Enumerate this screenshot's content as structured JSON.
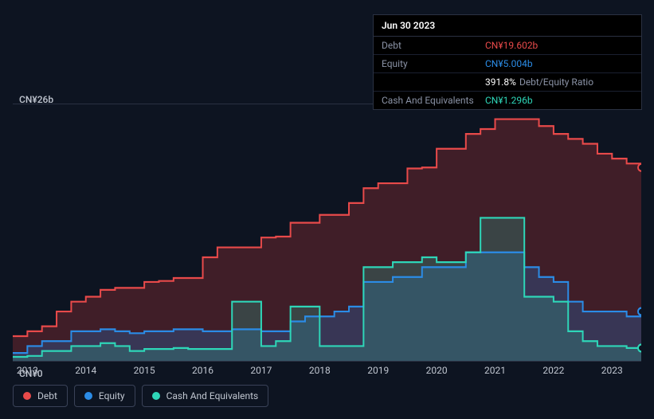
{
  "tooltip": {
    "date": "Jun 30 2023",
    "rows": [
      {
        "label": "Debt",
        "value": "CN¥19.602b",
        "cls": "debt"
      },
      {
        "label": "Equity",
        "value": "CN¥5.004b",
        "cls": "equity"
      },
      {
        "label": "",
        "value": "391.8%",
        "suffix": "Debt/Equity Ratio",
        "cls": ""
      },
      {
        "label": "Cash And Equivalents",
        "value": "CN¥1.296b",
        "cls": "cash"
      }
    ]
  },
  "chart": {
    "type": "area",
    "background_color": "#0d1421",
    "grid_color": "#2a3142",
    "y_axis": {
      "top_label": "CN¥26b",
      "bottom_label": "CN¥0",
      "ylim": [
        0,
        26
      ]
    },
    "x_axis": {
      "labels": [
        "2013",
        "2014",
        "2015",
        "2016",
        "2017",
        "2018",
        "2019",
        "2020",
        "2021",
        "2022",
        "2023"
      ],
      "xlim": [
        2012.75,
        2023.5
      ]
    },
    "series": [
      {
        "name": "Debt",
        "color": "#e84a4a",
        "fill": "rgba(160,50,55,0.35)",
        "line_width": 2,
        "points": [
          [
            2012.75,
            2.5
          ],
          [
            2013.0,
            3.0
          ],
          [
            2013.25,
            3.5
          ],
          [
            2013.5,
            5.0
          ],
          [
            2013.75,
            6.0
          ],
          [
            2014.0,
            6.5
          ],
          [
            2014.25,
            7.2
          ],
          [
            2014.5,
            7.4
          ],
          [
            2014.75,
            7.4
          ],
          [
            2015.0,
            8.0
          ],
          [
            2015.25,
            8.1
          ],
          [
            2015.5,
            8.4
          ],
          [
            2015.75,
            8.4
          ],
          [
            2016.0,
            10.5
          ],
          [
            2016.25,
            11.5
          ],
          [
            2016.5,
            11.5
          ],
          [
            2016.75,
            11.5
          ],
          [
            2017.0,
            12.5
          ],
          [
            2017.25,
            12.6
          ],
          [
            2017.5,
            14.0
          ],
          [
            2017.75,
            14.0
          ],
          [
            2018.0,
            14.8
          ],
          [
            2018.25,
            14.8
          ],
          [
            2018.5,
            16.0
          ],
          [
            2018.75,
            17.5
          ],
          [
            2019.0,
            18.0
          ],
          [
            2019.25,
            18.0
          ],
          [
            2019.5,
            19.5
          ],
          [
            2019.75,
            19.6
          ],
          [
            2020.0,
            21.5
          ],
          [
            2020.25,
            21.5
          ],
          [
            2020.5,
            23.0
          ],
          [
            2020.75,
            23.5
          ],
          [
            2021.0,
            24.5
          ],
          [
            2021.25,
            24.5
          ],
          [
            2021.5,
            24.5
          ],
          [
            2021.75,
            23.8
          ],
          [
            2022.0,
            23.0
          ],
          [
            2022.25,
            22.5
          ],
          [
            2022.5,
            22.0
          ],
          [
            2022.75,
            21.0
          ],
          [
            2023.0,
            20.5
          ],
          [
            2023.25,
            20.0
          ],
          [
            2023.5,
            19.6
          ]
        ]
      },
      {
        "name": "Equity",
        "color": "#2b8ce6",
        "fill": "rgba(43,100,170,0.35)",
        "line_width": 2,
        "points": [
          [
            2012.75,
            0.8
          ],
          [
            2013.0,
            1.5
          ],
          [
            2013.25,
            2.0
          ],
          [
            2013.5,
            2.0
          ],
          [
            2013.75,
            3.0
          ],
          [
            2014.0,
            3.0
          ],
          [
            2014.25,
            3.2
          ],
          [
            2014.5,
            3.0
          ],
          [
            2014.75,
            2.8
          ],
          [
            2015.0,
            3.0
          ],
          [
            2015.25,
            3.0
          ],
          [
            2015.5,
            3.2
          ],
          [
            2015.75,
            3.2
          ],
          [
            2016.0,
            3.0
          ],
          [
            2016.25,
            3.0
          ],
          [
            2016.5,
            3.2
          ],
          [
            2016.75,
            3.2
          ],
          [
            2017.0,
            3.0
          ],
          [
            2017.25,
            3.0
          ],
          [
            2017.5,
            4.0
          ],
          [
            2017.75,
            4.5
          ],
          [
            2018.0,
            4.5
          ],
          [
            2018.25,
            5.0
          ],
          [
            2018.5,
            5.5
          ],
          [
            2018.75,
            8.0
          ],
          [
            2019.0,
            8.0
          ],
          [
            2019.25,
            8.5
          ],
          [
            2019.5,
            8.5
          ],
          [
            2019.75,
            9.5
          ],
          [
            2020.0,
            9.5
          ],
          [
            2020.25,
            9.5
          ],
          [
            2020.5,
            11.0
          ],
          [
            2020.75,
            11.0
          ],
          [
            2021.0,
            11.0
          ],
          [
            2021.25,
            11.0
          ],
          [
            2021.5,
            9.5
          ],
          [
            2021.75,
            8.5
          ],
          [
            2022.0,
            8.0
          ],
          [
            2022.25,
            6.0
          ],
          [
            2022.5,
            5.0
          ],
          [
            2022.75,
            5.0
          ],
          [
            2023.0,
            5.0
          ],
          [
            2023.25,
            4.5
          ],
          [
            2023.5,
            5.0
          ]
        ]
      },
      {
        "name": "Cash And Equivalents",
        "color": "#2ed6b8",
        "fill": "rgba(46,160,140,0.3)",
        "line_width": 2,
        "points": [
          [
            2012.75,
            0.4
          ],
          [
            2013.0,
            0.5
          ],
          [
            2013.25,
            1.0
          ],
          [
            2013.5,
            1.0
          ],
          [
            2013.75,
            1.5
          ],
          [
            2014.0,
            1.5
          ],
          [
            2014.25,
            1.8
          ],
          [
            2014.5,
            1.5
          ],
          [
            2014.75,
            1.0
          ],
          [
            2015.0,
            1.2
          ],
          [
            2015.25,
            1.2
          ],
          [
            2015.5,
            1.3
          ],
          [
            2015.75,
            1.2
          ],
          [
            2016.0,
            1.2
          ],
          [
            2016.25,
            1.2
          ],
          [
            2016.5,
            6.0
          ],
          [
            2016.75,
            6.0
          ],
          [
            2017.0,
            1.5
          ],
          [
            2017.25,
            2.0
          ],
          [
            2017.5,
            5.5
          ],
          [
            2017.75,
            5.5
          ],
          [
            2018.0,
            1.5
          ],
          [
            2018.25,
            1.5
          ],
          [
            2018.5,
            1.5
          ],
          [
            2018.75,
            9.5
          ],
          [
            2019.0,
            9.5
          ],
          [
            2019.25,
            10.0
          ],
          [
            2019.5,
            10.0
          ],
          [
            2019.75,
            10.5
          ],
          [
            2020.0,
            10.0
          ],
          [
            2020.25,
            10.0
          ],
          [
            2020.5,
            11.0
          ],
          [
            2020.75,
            14.5
          ],
          [
            2021.0,
            14.5
          ],
          [
            2021.25,
            14.5
          ],
          [
            2021.5,
            6.5
          ],
          [
            2021.75,
            6.5
          ],
          [
            2022.0,
            6.0
          ],
          [
            2022.25,
            3.0
          ],
          [
            2022.5,
            2.0
          ],
          [
            2022.75,
            1.5
          ],
          [
            2023.0,
            1.5
          ],
          [
            2023.25,
            1.3
          ],
          [
            2023.5,
            1.3
          ]
        ]
      }
    ],
    "legend": [
      {
        "label": "Debt",
        "color": "#e84a4a"
      },
      {
        "label": "Equity",
        "color": "#2b8ce6"
      },
      {
        "label": "Cash And Equivalents",
        "color": "#2ed6b8"
      }
    ]
  }
}
